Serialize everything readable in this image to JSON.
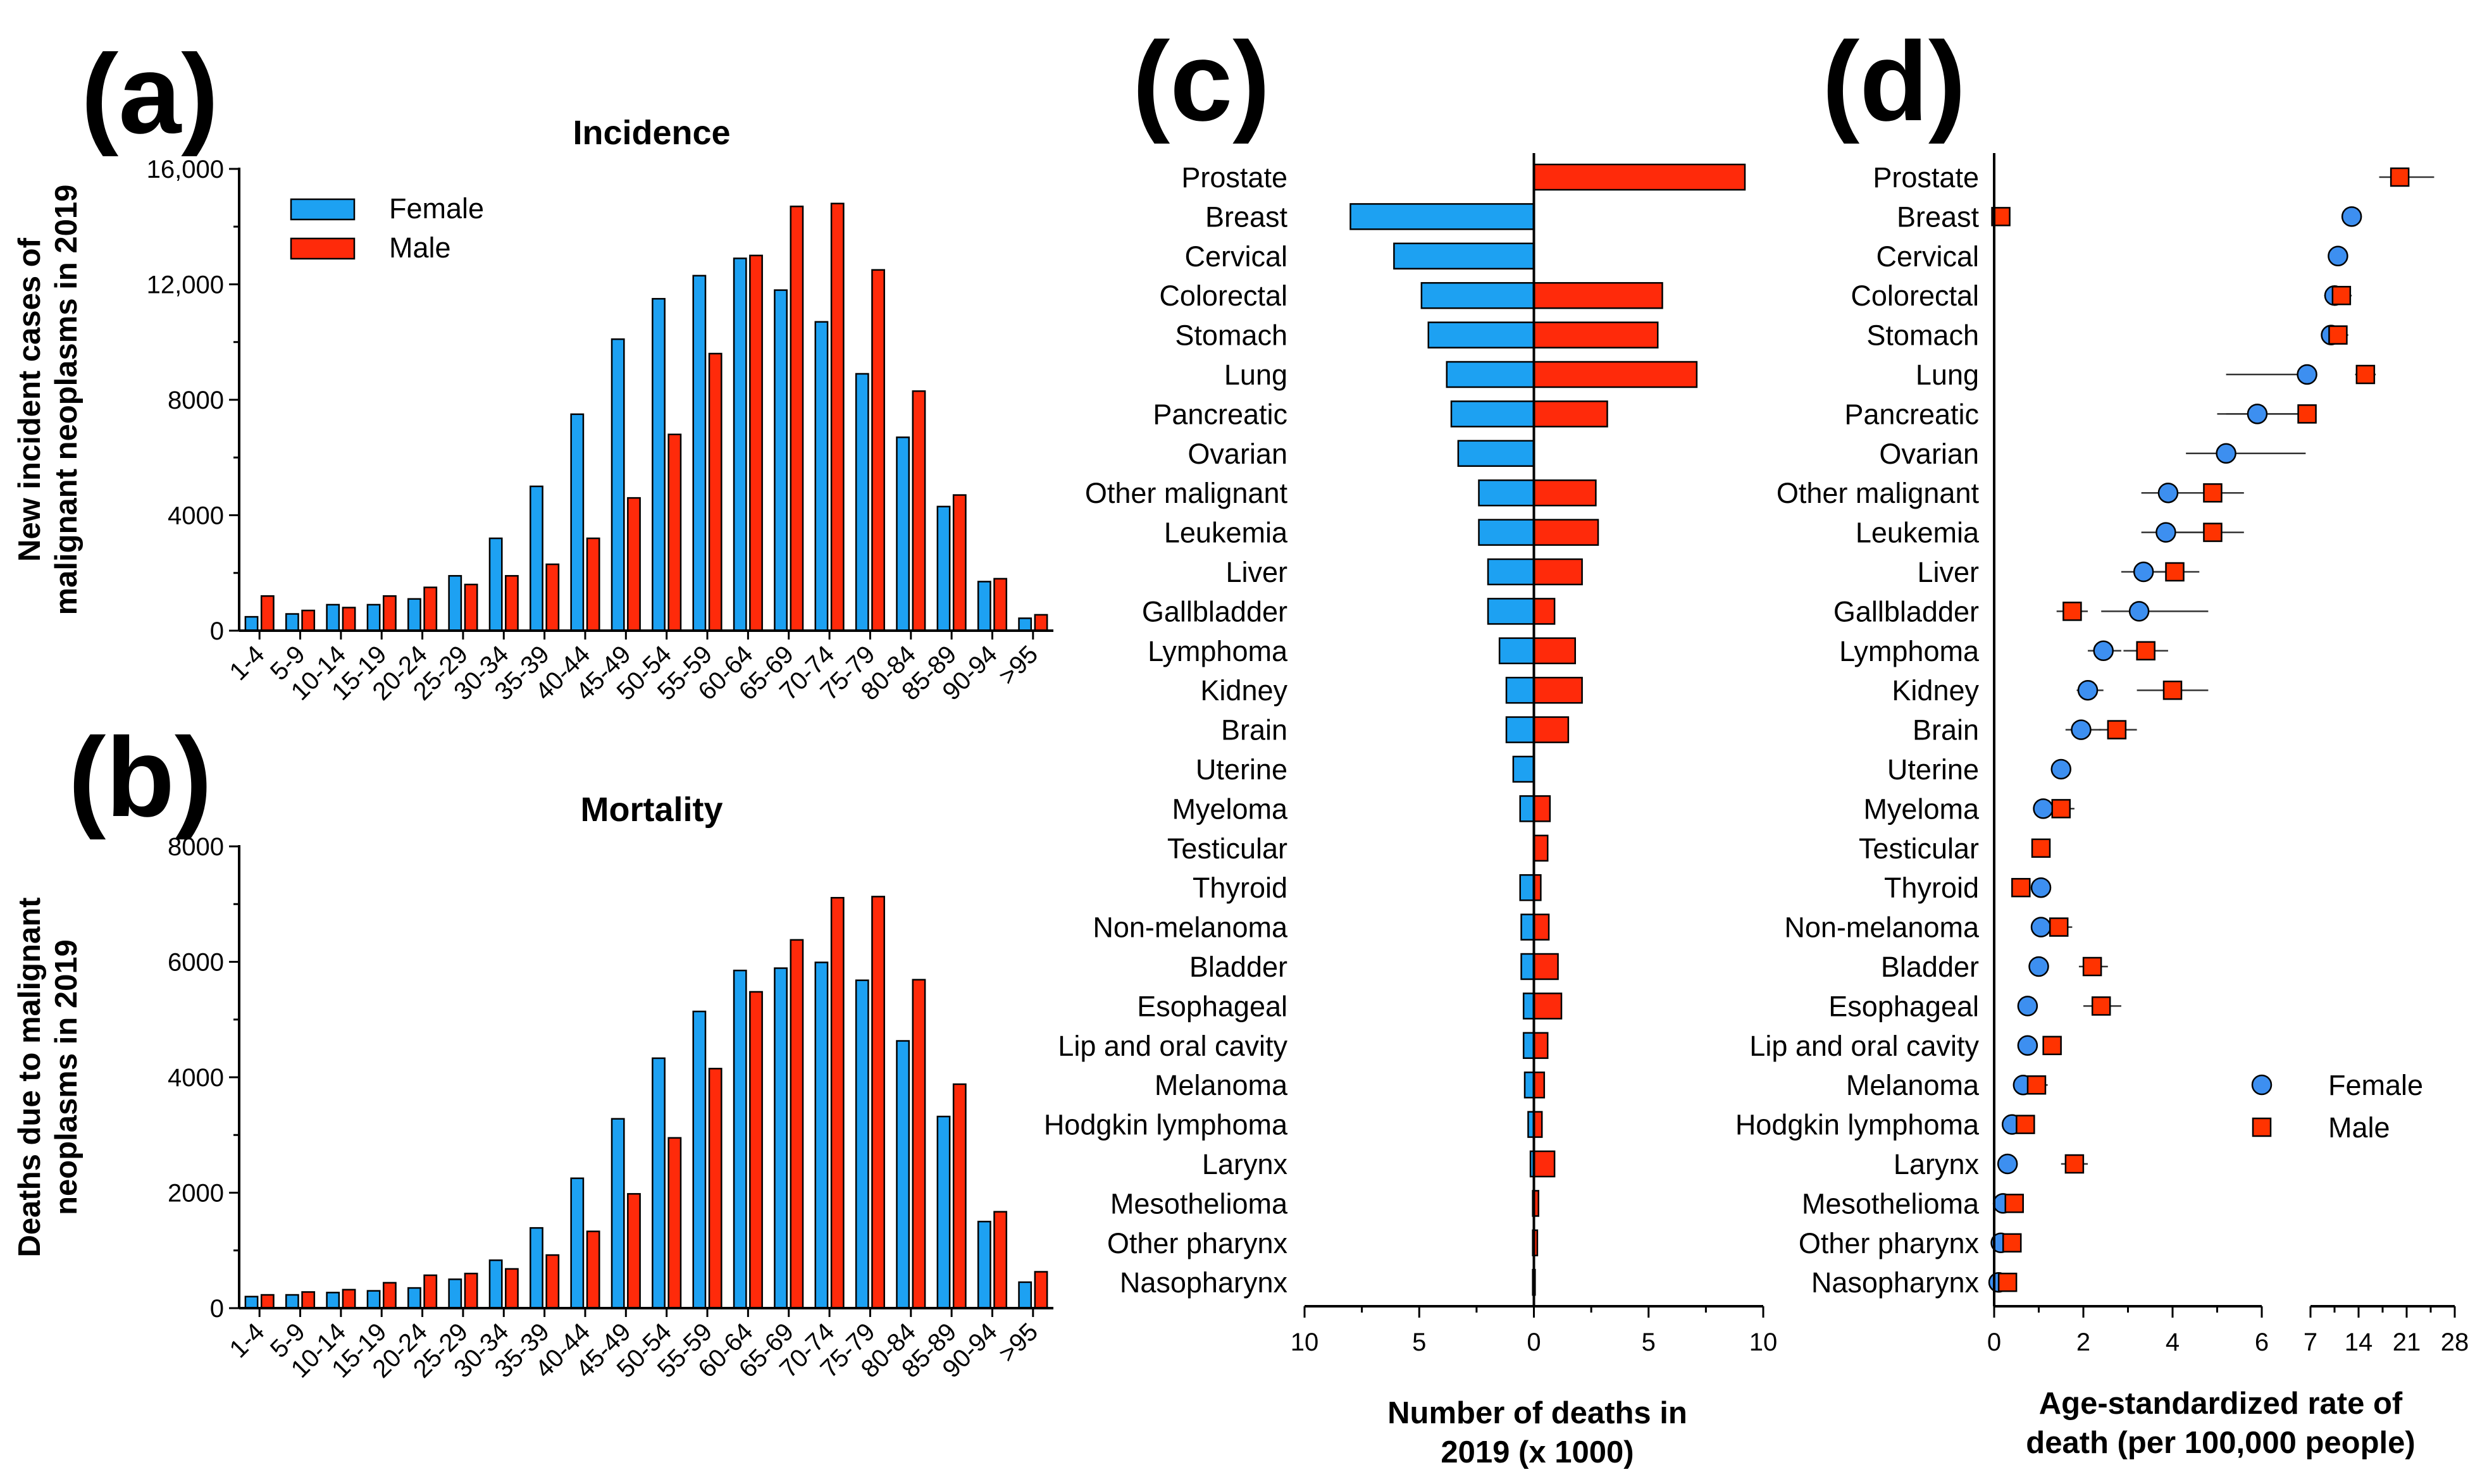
{
  "colors": {
    "female": "#1da1f2",
    "male": "#ff2a0a",
    "female_marker": "#3d8ff0",
    "male_marker": "#ff3300"
  },
  "panel_letters": [
    "(a)",
    "(b)",
    "(c)",
    "(d)"
  ],
  "chart_data": [
    {
      "id": "a",
      "type": "bar",
      "title": "Incidence",
      "ylabel": [
        "New incident cases of",
        "malignant neoplasms in 2019"
      ],
      "xlabel": "",
      "ylim": [
        0,
        16000
      ],
      "yticks": [
        0,
        4000,
        8000,
        12000,
        16000
      ],
      "ytick_labels": [
        "0",
        "4000",
        "8000",
        "12,000",
        "16,000"
      ],
      "categories": [
        "1-4",
        "5-9",
        "10-14",
        "15-19",
        "20-24",
        "25-29",
        "30-34",
        "35-39",
        "40-44",
        "45-49",
        "50-54",
        "55-59",
        "60-64",
        "65-69",
        "70-74",
        "75-79",
        "80-84",
        "85-89",
        "90-94",
        ">95"
      ],
      "legend": [
        "Female",
        "Male"
      ],
      "legend_position": "top-left",
      "series": [
        {
          "name": "Female",
          "values": [
            480,
            580,
            900,
            900,
            1100,
            1900,
            3200,
            5000,
            7500,
            10100,
            11500,
            12300,
            12900,
            11800,
            10700,
            8900,
            6700,
            4300,
            1700,
            430
          ]
        },
        {
          "name": "Male",
          "values": [
            1200,
            700,
            800,
            1200,
            1500,
            1600,
            1900,
            2300,
            3200,
            4600,
            6800,
            9600,
            13000,
            14700,
            14800,
            12500,
            8300,
            4700,
            1800,
            550
          ]
        }
      ]
    },
    {
      "id": "b",
      "type": "bar",
      "title": "Mortality",
      "ylabel": [
        "Deaths due to malignant",
        "neoplasms in 2019"
      ],
      "xlabel": "",
      "ylim": [
        0,
        8000
      ],
      "yticks": [
        0,
        2000,
        4000,
        6000,
        8000
      ],
      "ytick_labels": [
        "0",
        "2000",
        "4000",
        "6000",
        "8000"
      ],
      "categories": [
        "1-4",
        "5-9",
        "10-14",
        "15-19",
        "20-24",
        "25-29",
        "30-34",
        "35-39",
        "40-44",
        "45-49",
        "50-54",
        "55-59",
        "60-64",
        "65-69",
        "70-74",
        "75-79",
        "80-84",
        "85-89",
        "90-94",
        ">95"
      ],
      "series": [
        {
          "name": "Female",
          "values": [
            200,
            230,
            270,
            300,
            350,
            500,
            830,
            1390,
            2250,
            3280,
            4330,
            5140,
            5850,
            5890,
            5990,
            5680,
            4630,
            3320,
            1500,
            450
          ]
        },
        {
          "name": "Male",
          "values": [
            230,
            280,
            320,
            440,
            570,
            600,
            680,
            920,
            1330,
            1980,
            2950,
            4150,
            5480,
            6380,
            7110,
            7130,
            5690,
            3880,
            1670,
            630
          ]
        }
      ]
    },
    {
      "id": "c",
      "type": "bar",
      "orientation": "horizontal-diverging",
      "xlabel": [
        "Number of deaths in",
        "2019 (x 1000)"
      ],
      "xlim": [
        -10,
        10
      ],
      "xticks": [
        -10,
        -5,
        0,
        5,
        10
      ],
      "xtick_labels": [
        "10",
        "5",
        "0",
        "5",
        "10"
      ],
      "categories": [
        "Prostate",
        "Breast",
        "Cervical",
        "Colorectal",
        "Stomach",
        "Lung",
        "Pancreatic",
        "Ovarian",
        "Other malignant",
        "Leukemia",
        "Liver",
        "Gallbladder",
        "Lymphoma",
        "Kidney",
        "Brain",
        "Uterine",
        "Myeloma",
        "Testicular",
        "Thyroid",
        "Non-melanoma",
        "Bladder",
        "Esophageal",
        "Lip and oral cavity",
        "Melanoma",
        "Hodgkin lymphoma",
        "Larynx",
        "Mesothelioma",
        "Other pharynx",
        "Nasopharynx"
      ],
      "series": [
        {
          "name": "Female",
          "values": [
            0,
            8.0,
            6.1,
            4.9,
            4.6,
            3.8,
            3.6,
            3.3,
            2.4,
            2.4,
            2.0,
            2.0,
            1.5,
            1.2,
            1.2,
            0.9,
            0.6,
            0,
            0.6,
            0.55,
            0.55,
            0.45,
            0.45,
            0.4,
            0.25,
            0.15,
            0.05,
            0.05,
            0.05
          ]
        },
        {
          "name": "Male",
          "values": [
            9.2,
            0,
            0,
            5.6,
            5.4,
            7.1,
            3.2,
            0,
            2.7,
            2.8,
            2.1,
            0.9,
            1.8,
            2.1,
            1.5,
            0,
            0.7,
            0.6,
            0.3,
            0.65,
            1.05,
            1.2,
            0.6,
            0.45,
            0.35,
            0.9,
            0.2,
            0.15,
            0.05
          ]
        }
      ]
    },
    {
      "id": "d",
      "type": "scatter",
      "xlabel": [
        "Age-standardized rate of",
        "death (per 100,000 people)"
      ],
      "xlim_left": [
        0,
        6
      ],
      "xticks_left": [
        0,
        2,
        4,
        6
      ],
      "xlim_right": [
        7,
        28
      ],
      "xticks_right": [
        7,
        14,
        21,
        28
      ],
      "legend": [
        "Female",
        "Male"
      ],
      "legend_position": "bottom-right",
      "categories": [
        "Prostate",
        "Breast",
        "Cervical",
        "Colorectal",
        "Stomach",
        "Lung",
        "Pancreatic",
        "Ovarian",
        "Other malignant",
        "Leukemia",
        "Liver",
        "Gallbladder",
        "Lymphoma",
        "Kidney",
        "Brain",
        "Uterine",
        "Myeloma",
        "Testicular",
        "Thyroid",
        "Non-melanoma",
        "Bladder",
        "Esophageal",
        "Lip and oral cavity",
        "Melanoma",
        "Hodgkin lymphoma",
        "Larynx",
        "Mesothelioma",
        "Other pharynx",
        "Nasopharynx"
      ],
      "series": [
        {
          "name": "Female",
          "values": [
            null,
            13.0,
            11.0,
            10.5,
            10.0,
            6.5,
            5.9,
            5.2,
            3.9,
            3.85,
            3.35,
            3.25,
            2.45,
            2.1,
            1.95,
            1.5,
            1.1,
            null,
            1.05,
            1.05,
            1.0,
            0.75,
            0.75,
            0.65,
            0.4,
            0.3,
            0.2,
            0.15,
            0.1
          ],
          "ci_low": [
            null,
            12.0,
            10.2,
            9.0,
            9.0,
            5.2,
            5.0,
            4.3,
            3.3,
            3.3,
            2.85,
            2.4,
            2.1,
            1.85,
            1.6,
            1.35,
            0.95,
            null,
            null,
            0.95,
            null,
            null,
            null,
            0.5,
            null,
            null,
            null,
            null,
            null
          ],
          "ci_high": [
            null,
            14.2,
            12.0,
            12.0,
            11.5,
            6.8,
            6.5,
            6.3,
            4.7,
            4.7,
            4.0,
            4.8,
            2.85,
            2.45,
            2.4,
            1.65,
            1.3,
            null,
            null,
            1.2,
            null,
            null,
            null,
            1.0,
            null,
            null,
            null,
            null,
            null
          ]
        },
        {
          "name": "Male",
          "values": [
            20.0,
            0.15,
            null,
            11.5,
            11.0,
            15.0,
            6.5,
            null,
            4.9,
            4.9,
            4.05,
            1.75,
            3.4,
            4.0,
            2.75,
            null,
            1.5,
            1.05,
            0.6,
            1.45,
            2.2,
            2.4,
            1.3,
            0.95,
            0.7,
            1.8,
            0.45,
            0.4,
            0.3
          ],
          "ci_low": [
            17.0,
            null,
            null,
            10.0,
            9.8,
            13.5,
            5.2,
            null,
            4.1,
            4.1,
            3.6,
            1.4,
            2.9,
            3.2,
            2.35,
            null,
            1.25,
            0.9,
            0.45,
            1.2,
            1.9,
            2.0,
            1.1,
            0.7,
            0.55,
            1.5,
            0.3,
            0.25,
            0.15
          ],
          "ci_high": [
            25.0,
            null,
            null,
            13.0,
            12.5,
            16.5,
            7.0,
            null,
            5.6,
            5.6,
            4.6,
            2.1,
            3.9,
            4.8,
            3.2,
            null,
            1.8,
            1.2,
            0.75,
            1.75,
            2.55,
            2.85,
            1.5,
            1.2,
            0.9,
            2.1,
            0.6,
            0.55,
            0.45
          ]
        }
      ]
    }
  ]
}
